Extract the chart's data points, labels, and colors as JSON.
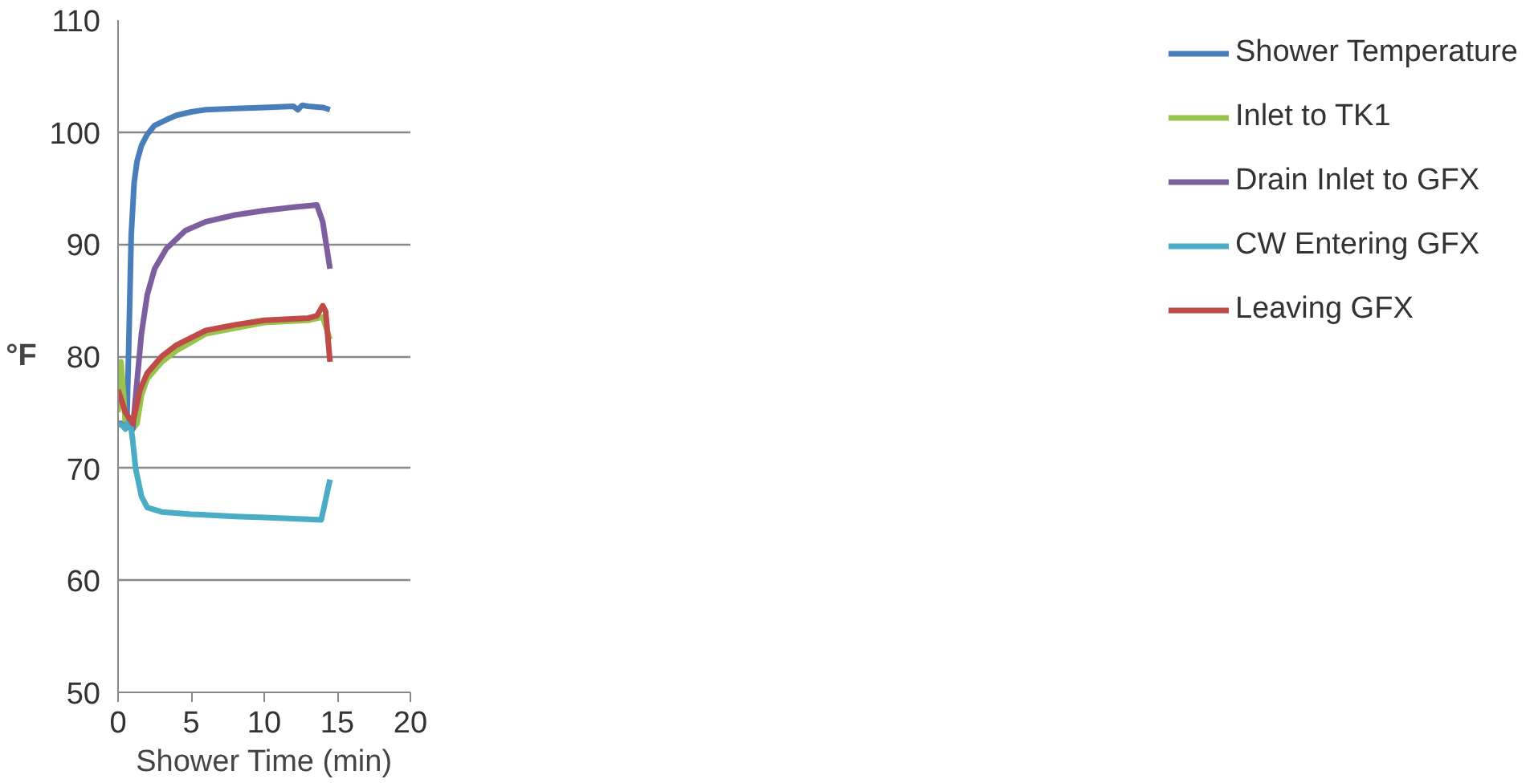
{
  "chart_data": {
    "type": "line",
    "xlabel": "Shower Time (min)",
    "ylabel": "°F",
    "xlim": [
      0,
      20
    ],
    "ylim": [
      50,
      110
    ],
    "xticks": [
      0,
      5,
      10,
      15,
      20
    ],
    "yticks": [
      50,
      60,
      70,
      80,
      90,
      100,
      110
    ],
    "grid": "y",
    "legend": "right",
    "marker": "none",
    "line_style": "solid",
    "series": [
      {
        "name": "Shower Temperature",
        "color": "#4a7ebb",
        "x": [
          0,
          0.3,
          0.6,
          0.75,
          0.9,
          1.1,
          1.3,
          1.6,
          2.0,
          2.5,
          3.3,
          4,
          5,
          6,
          8,
          10,
          12,
          12.3,
          12.6,
          13,
          14,
          14.5
        ],
        "values": [
          74,
          74,
          73.8,
          82,
          90.8,
          95.5,
          97.4,
          98.8,
          99.8,
          100.6,
          101.1,
          101.5,
          101.8,
          102,
          102.1,
          102.2,
          102.3,
          102,
          102.4,
          102.3,
          102.2,
          102
        ]
      },
      {
        "name": "Inlet to TK1",
        "color": "#98c34c",
        "x": [
          0,
          0.2,
          0.35,
          0.5,
          0.8,
          1.0,
          1.3,
          1.6,
          2,
          3,
          4,
          6,
          8,
          10,
          13,
          14,
          14.5
        ],
        "values": [
          75,
          79.5,
          77,
          74,
          73.8,
          73.5,
          74,
          76.5,
          78,
          79.5,
          80.5,
          82,
          82.5,
          83,
          83.2,
          83.5,
          81.5
        ]
      },
      {
        "name": "Drain Inlet to GFX",
        "color": "#7d5fa0",
        "x": [
          0,
          0.5,
          1.0,
          1.3,
          1.6,
          2,
          2.5,
          3.3,
          4.6,
          6,
          8,
          10,
          12,
          13.6,
          14,
          14.5
        ],
        "values": [
          74,
          73.8,
          73.5,
          77.8,
          82,
          85.5,
          87.8,
          89.6,
          91.2,
          92,
          92.6,
          93,
          93.3,
          93.5,
          92,
          87.8
        ]
      },
      {
        "name": "CW Entering GFX",
        "color": "#4bacc6",
        "x": [
          0,
          0.3,
          0.5,
          0.8,
          1.0,
          1.2,
          1.6,
          2,
          3,
          5,
          8,
          10,
          12,
          13.9,
          14.5
        ],
        "values": [
          74,
          73.8,
          73.5,
          74.5,
          72.5,
          70,
          67.5,
          66.5,
          66.1,
          65.9,
          65.7,
          65.6,
          65.5,
          65.4,
          69
        ]
      },
      {
        "name": "Leaving GFX",
        "color": "#be4b48",
        "x": [
          0,
          0.5,
          1.0,
          1.5,
          2,
          3,
          4,
          6,
          8,
          10,
          13,
          13.6,
          14,
          14.2,
          14.5
        ],
        "values": [
          77,
          75,
          74,
          77,
          78.5,
          80,
          81,
          82.3,
          82.8,
          83.2,
          83.4,
          83.6,
          84.5,
          84,
          79.5
        ]
      }
    ]
  }
}
